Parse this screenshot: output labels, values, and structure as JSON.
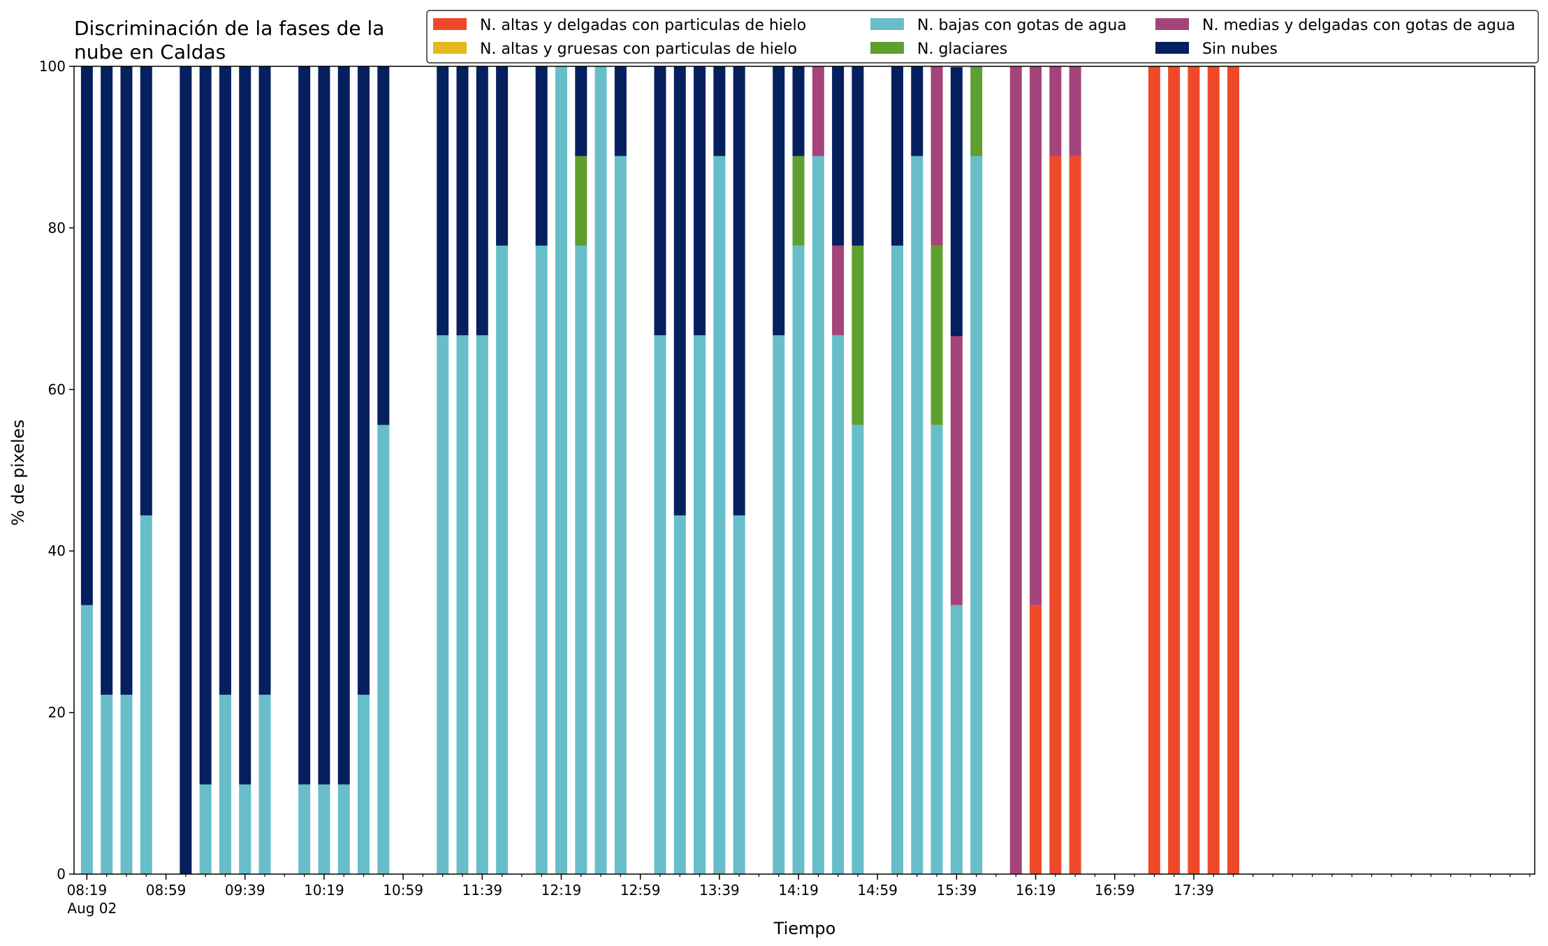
{
  "chart_data": {
    "type": "bar",
    "stacked": true,
    "title_lines": [
      "Discriminación de la fases de la",
      "nube en Caldas"
    ],
    "xlabel": "Tiempo",
    "ylabel": "% de pixeles",
    "ylim": [
      0,
      100
    ],
    "yticks": [
      "0",
      "20",
      "40",
      "60",
      "80",
      "100"
    ],
    "x_date": "Aug 02",
    "x_tick_labels": [
      "08:19",
      "08:59",
      "09:39",
      "10:19",
      "10:59",
      "11:39",
      "12:19",
      "12:59",
      "13:39",
      "14:19",
      "14:59",
      "15:39",
      "16:19",
      "16:59",
      "17:39"
    ],
    "x_minutes_start": "08:19",
    "x_step_minutes": 10,
    "legend_position": "top-right",
    "legend": [
      "N. altas y delgadas con particulas de hielo",
      "N. altas y gruesas con particulas de hielo",
      "N. bajas con gotas de agua",
      "N. glaciares",
      "N. medias y delgadas con gotas de agua",
      "Sin nubes"
    ],
    "colors": [
      "#ee4a2a",
      "#e3b91e",
      "#67bec9",
      "#5e9f2f",
      "#a4447b",
      "#061f5e"
    ],
    "stack_order": [
      "N. altas y delgadas con particulas de hielo",
      "N. altas y gruesas con particulas de hielo",
      "N. bajas con gotas de agua",
      "N. glaciares",
      "N. medias y delgadas con gotas de agua",
      "Sin nubes"
    ],
    "bars": [
      {
        "time": "08:19",
        "values": [
          0,
          0,
          33.3,
          0,
          0,
          66.7
        ]
      },
      {
        "time": "08:29",
        "values": [
          0,
          0,
          22.2,
          0,
          0,
          77.8
        ]
      },
      {
        "time": "08:39",
        "values": [
          0,
          0,
          22.2,
          0,
          0,
          77.8
        ]
      },
      {
        "time": "08:49",
        "values": [
          0,
          0,
          44.4,
          0,
          0,
          55.6
        ]
      },
      {
        "time": "09:09",
        "values": [
          0,
          0,
          0,
          0,
          0,
          100
        ]
      },
      {
        "time": "09:19",
        "values": [
          0,
          0,
          11.1,
          0,
          0,
          88.9
        ]
      },
      {
        "time": "09:29",
        "values": [
          0,
          0,
          22.2,
          0,
          0,
          77.8
        ]
      },
      {
        "time": "09:39",
        "values": [
          0,
          0,
          11.1,
          0,
          0,
          88.9
        ]
      },
      {
        "time": "09:49",
        "values": [
          0,
          0,
          22.2,
          0,
          0,
          77.8
        ]
      },
      {
        "time": "10:09",
        "values": [
          0,
          0,
          11.1,
          0,
          0,
          88.9
        ]
      },
      {
        "time": "10:19",
        "values": [
          0,
          0,
          11.1,
          0,
          0,
          88.9
        ]
      },
      {
        "time": "10:29",
        "values": [
          0,
          0,
          11.1,
          0,
          0,
          88.9
        ]
      },
      {
        "time": "10:39",
        "values": [
          0,
          0,
          22.2,
          0,
          0,
          77.8
        ]
      },
      {
        "time": "10:49",
        "values": [
          0,
          0,
          55.6,
          0,
          0,
          44.4
        ]
      },
      {
        "time": "11:19",
        "values": [
          0,
          0,
          66.7,
          0,
          0,
          33.3
        ]
      },
      {
        "time": "11:29",
        "values": [
          0,
          0,
          66.7,
          0,
          0,
          33.3
        ]
      },
      {
        "time": "11:39",
        "values": [
          0,
          0,
          66.7,
          0,
          0,
          33.3
        ]
      },
      {
        "time": "11:49",
        "values": [
          0,
          0,
          77.8,
          0,
          0,
          22.2
        ]
      },
      {
        "time": "12:09",
        "values": [
          0,
          0,
          77.8,
          0,
          0,
          22.2
        ]
      },
      {
        "time": "12:19",
        "values": [
          0,
          0,
          100,
          0,
          0,
          0
        ]
      },
      {
        "time": "12:29",
        "values": [
          0,
          0,
          77.8,
          11.1,
          0,
          11.1
        ]
      },
      {
        "time": "12:39",
        "values": [
          0,
          0,
          100,
          0,
          0,
          0
        ]
      },
      {
        "time": "12:49",
        "values": [
          0,
          0,
          88.9,
          0,
          0,
          11.1
        ]
      },
      {
        "time": "13:09",
        "values": [
          0,
          0,
          66.7,
          0,
          0,
          33.3
        ]
      },
      {
        "time": "13:19",
        "values": [
          0,
          0,
          44.4,
          0,
          0,
          55.6
        ]
      },
      {
        "time": "13:29",
        "values": [
          0,
          0,
          66.7,
          0,
          0,
          33.3
        ]
      },
      {
        "time": "13:39",
        "values": [
          0,
          0,
          88.9,
          0,
          0,
          11.1
        ]
      },
      {
        "time": "13:49",
        "values": [
          0,
          0,
          44.4,
          0,
          0,
          55.6
        ]
      },
      {
        "time": "14:09",
        "values": [
          0,
          0,
          66.7,
          0,
          0,
          33.3
        ]
      },
      {
        "time": "14:19",
        "values": [
          0,
          0,
          77.8,
          11.1,
          0,
          11.1
        ]
      },
      {
        "time": "14:29",
        "values": [
          0,
          0,
          88.9,
          0,
          11.1,
          0
        ]
      },
      {
        "time": "14:39",
        "values": [
          0,
          0,
          66.7,
          0,
          11.1,
          22.2
        ]
      },
      {
        "time": "14:49",
        "values": [
          0,
          0,
          55.6,
          22.2,
          0,
          22.2
        ]
      },
      {
        "time": "15:09",
        "values": [
          0,
          0,
          77.8,
          0,
          0,
          22.2
        ]
      },
      {
        "time": "15:19",
        "values": [
          0,
          0,
          88.9,
          0,
          0,
          11.1
        ]
      },
      {
        "time": "15:29",
        "values": [
          0,
          0,
          55.6,
          22.2,
          22.2,
          0
        ]
      },
      {
        "time": "15:39",
        "values": [
          0,
          0,
          33.3,
          0,
          33.3,
          33.3
        ]
      },
      {
        "time": "15:49",
        "values": [
          0,
          0,
          88.9,
          11.1,
          0,
          0
        ]
      },
      {
        "time": "16:09",
        "values": [
          0,
          0,
          0,
          0,
          100,
          0
        ]
      },
      {
        "time": "16:19",
        "values": [
          33.3,
          0,
          0,
          0,
          66.7,
          0
        ]
      },
      {
        "time": "16:29",
        "values": [
          88.9,
          0,
          0,
          0,
          11.1,
          0
        ]
      },
      {
        "time": "16:39",
        "values": [
          88.9,
          0,
          0,
          0,
          11.1,
          0
        ]
      },
      {
        "time": "17:19",
        "values": [
          100,
          0,
          0,
          0,
          0,
          0
        ]
      },
      {
        "time": "17:29",
        "values": [
          100,
          0,
          0,
          0,
          0,
          0
        ]
      },
      {
        "time": "17:39",
        "values": [
          100,
          0,
          0,
          0,
          0,
          0
        ]
      },
      {
        "time": "17:49",
        "values": [
          100,
          0,
          0,
          0,
          0,
          0
        ]
      },
      {
        "time": "17:59",
        "values": [
          100,
          0,
          0,
          0,
          0,
          0
        ]
      }
    ]
  }
}
